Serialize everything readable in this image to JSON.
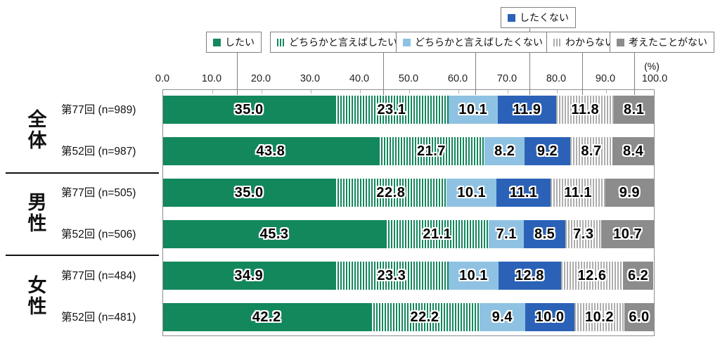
{
  "chart_data": {
    "type": "bar",
    "orientation": "horizontal",
    "stacked": true,
    "unit": "(%)",
    "xlim": [
      0,
      100
    ],
    "x_ticks": [
      "0.0",
      "10.0",
      "20.0",
      "30.0",
      "40.0",
      "50.0",
      "60.0",
      "70.0",
      "80.0",
      "90.0",
      "100.0"
    ],
    "grid": false,
    "legend_position": "top",
    "legend": [
      {
        "name": "したい",
        "color": "#12885C",
        "pattern": "solid"
      },
      {
        "name": "どちらかと言えばしたい",
        "color": "#12885C",
        "pattern": "vertical-stripes"
      },
      {
        "name": "どちらかと言えばしたくない",
        "color": "#8FC2E2",
        "pattern": "solid"
      },
      {
        "name": "したくない",
        "color": "#2B62B8",
        "pattern": "solid"
      },
      {
        "name": "わからない",
        "color": "#ADADAD",
        "pattern": "vertical-stripes"
      },
      {
        "name": "考えたことがない",
        "color": "#8C8C8C",
        "pattern": "solid"
      }
    ],
    "groups": [
      {
        "label": "全体",
        "rows": [
          {
            "label": "第77回 (n=989)",
            "values": [
              35.0,
              23.1,
              10.1,
              11.9,
              11.8,
              8.1
            ]
          },
          {
            "label": "第52回 (n=987)",
            "values": [
              43.8,
              21.7,
              8.2,
              9.2,
              8.7,
              8.4
            ]
          }
        ]
      },
      {
        "label": "男性",
        "rows": [
          {
            "label": "第77回 (n=505)",
            "values": [
              35.0,
              22.8,
              10.1,
              11.1,
              11.1,
              9.9
            ]
          },
          {
            "label": "第52回 (n=506)",
            "values": [
              45.3,
              21.1,
              7.1,
              8.5,
              7.3,
              10.7
            ]
          }
        ]
      },
      {
        "label": "女性",
        "rows": [
          {
            "label": "第77回 (n=484)",
            "values": [
              34.9,
              23.3,
              10.1,
              12.8,
              12.6,
              6.2
            ]
          },
          {
            "label": "第52回 (n=481)",
            "values": [
              42.2,
              22.2,
              9.4,
              10.0,
              10.2,
              6.0
            ]
          }
        ]
      }
    ]
  }
}
